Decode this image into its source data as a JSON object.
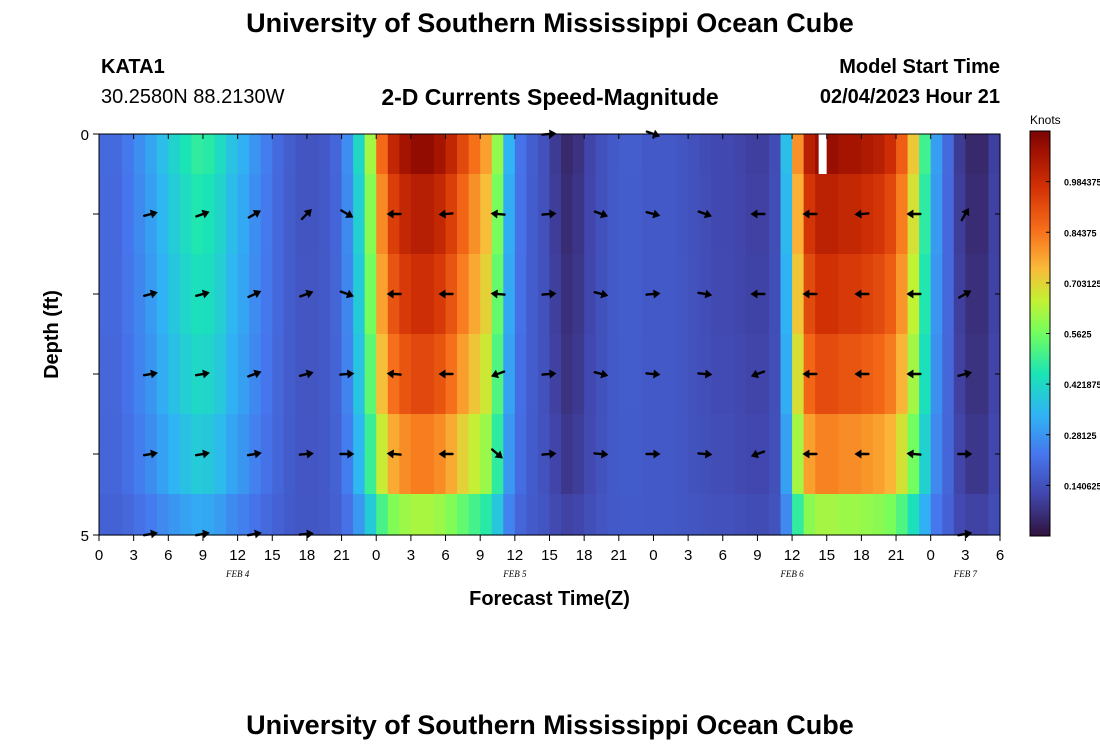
{
  "page": {
    "title_top": "University of Southern Mississippi Ocean Cube",
    "title_bottom": "University of Southern Mississippi Ocean Cube",
    "station": "KATA1",
    "coordinates": "30.2580N  88.2130W",
    "plot_title": "2-D Currents Speed-Magnitude",
    "model_start_label": "Model Start Time",
    "model_start_value": "02/04/2023 Hour 21"
  },
  "chart_data": {
    "type": "heatmap",
    "title": "2-D Currents Speed-Magnitude",
    "xlabel": "Forecast Time(Z)",
    "ylabel": "Depth (ft)",
    "x_tick_labels": [
      "0",
      "3",
      "6",
      "9",
      "12",
      "15",
      "18",
      "21",
      "0",
      "3",
      "6",
      "9",
      "12",
      "15",
      "18",
      "21",
      "0",
      "3",
      "6",
      "9",
      "12",
      "15",
      "18",
      "21",
      "0",
      "3",
      "6"
    ],
    "x_range_hours": [
      0,
      78
    ],
    "day_labels": [
      {
        "label": "FEB 4",
        "hour": 12
      },
      {
        "label": "FEB 5",
        "hour": 36
      },
      {
        "label": "FEB 6",
        "hour": 60
      },
      {
        "label": "FEB 7",
        "hour": 75
      }
    ],
    "y_tick_labels": [
      "0",
      "5"
    ],
    "y_range_ft": [
      0,
      5
    ],
    "colorbar": {
      "unit": "Knots",
      "range": [
        0,
        1.125
      ],
      "tick_labels": [
        "0.984375",
        "0.84375",
        "0.703125",
        "0.5625",
        "0.421875",
        "0.28125",
        "0.140625"
      ],
      "tick_values": [
        0.984375,
        0.84375,
        0.703125,
        0.5625,
        0.421875,
        0.28125,
        0.140625
      ]
    },
    "hours": [
      0,
      1,
      2,
      3,
      4,
      5,
      6,
      7,
      8,
      9,
      10,
      11,
      12,
      13,
      14,
      15,
      16,
      17,
      18,
      19,
      20,
      21,
      22,
      23,
      24,
      25,
      26,
      27,
      28,
      29,
      30,
      31,
      32,
      33,
      34,
      35,
      36,
      37,
      38,
      39,
      40,
      41,
      42,
      43,
      44,
      45,
      46,
      47,
      48,
      49,
      50,
      51,
      52,
      53,
      54,
      55,
      56,
      57,
      58,
      59,
      60,
      61,
      62,
      63,
      64,
      65,
      66,
      67,
      68,
      69,
      70,
      71,
      72,
      73,
      74,
      75,
      76,
      77
    ],
    "depth_rows_ft": [
      0,
      1,
      2,
      3,
      4,
      5
    ],
    "speed_profile": [
      0.2,
      0.2,
      0.23,
      0.27,
      0.31,
      0.36,
      0.41,
      0.45,
      0.48,
      0.47,
      0.43,
      0.37,
      0.33,
      0.28,
      0.24,
      0.2,
      0.17,
      0.15,
      0.15,
      0.16,
      0.19,
      0.27,
      0.42,
      0.62,
      0.86,
      1.0,
      1.06,
      1.09,
      1.09,
      1.06,
      1.0,
      0.92,
      0.85,
      0.78,
      0.6,
      0.34,
      0.22,
      0.17,
      0.14,
      0.09,
      0.05,
      0.07,
      0.11,
      0.14,
      0.16,
      0.17,
      0.17,
      0.16,
      0.16,
      0.16,
      0.15,
      0.14,
      0.13,
      0.12,
      0.12,
      0.11,
      0.1,
      0.1,
      0.13,
      0.36,
      0.8,
      1.02,
      1.08,
      1.08,
      1.06,
      1.06,
      1.04,
      1.02,
      0.98,
      0.88,
      0.72,
      0.5,
      0.3,
      0.2,
      0.09,
      0.05,
      0.05,
      0.1
    ],
    "depth_scale": [
      1.0,
      0.93,
      0.88,
      0.82,
      0.72,
      0.5
    ],
    "arrow_hours": [
      4.5,
      9,
      13.5,
      18,
      21.5,
      25.5,
      30,
      34.5,
      39,
      43.5,
      48,
      52.5,
      57,
      61.5,
      66,
      70.5,
      75
    ],
    "arrow_directions_deg": [
      [
        null,
        null,
        null,
        null,
        null,
        null,
        null,
        null,
        5,
        null,
        340,
        null,
        null,
        null,
        null,
        null,
        null
      ],
      [
        15,
        20,
        30,
        45,
        -30,
        180,
        185,
        175,
        5,
        -20,
        -15,
        -20,
        180,
        180,
        185,
        180,
        60
      ],
      [
        15,
        15,
        25,
        20,
        -20,
        180,
        180,
        175,
        5,
        -15,
        5,
        -10,
        180,
        180,
        180,
        180,
        30
      ],
      [
        10,
        10,
        20,
        15,
        5,
        175,
        180,
        200,
        5,
        -15,
        -5,
        -5,
        200,
        180,
        180,
        180,
        15
      ],
      [
        10,
        10,
        10,
        5,
        0,
        175,
        180,
        -40,
        5,
        -5,
        0,
        -5,
        200,
        180,
        180,
        175,
        0
      ],
      [
        10,
        10,
        10,
        5,
        null,
        null,
        null,
        null,
        null,
        null,
        null,
        null,
        null,
        null,
        null,
        null,
        10
      ]
    ]
  }
}
